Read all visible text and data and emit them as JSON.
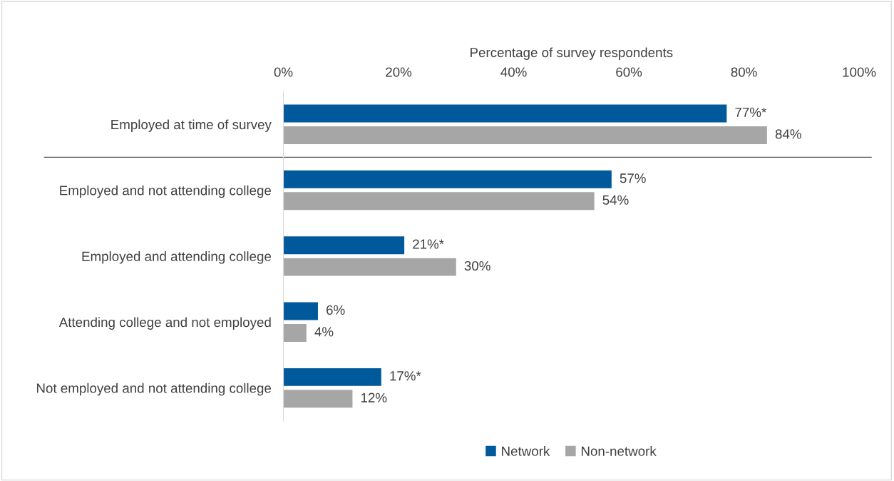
{
  "chart_data": {
    "type": "bar",
    "orientation": "horizontal",
    "xlabel": "Percentage of survey respondents",
    "categories": [
      "Employed at time of survey",
      "Employed and not attending college",
      "Employed and attending college",
      "Attending college and not employed",
      "Not employed and not attending college"
    ],
    "series": [
      {
        "name": "Network",
        "color": "#00599a",
        "values": [
          77,
          57,
          21,
          6,
          17
        ],
        "value_labels": [
          "77%*",
          "57%",
          "21%*",
          "6%",
          "17%*"
        ]
      },
      {
        "name": "Non-network",
        "color": "#a6a6a6",
        "values": [
          84,
          54,
          30,
          4,
          12
        ],
        "value_labels": [
          "84%",
          "54%",
          "30%",
          "4%",
          "12%"
        ]
      }
    ],
    "xlim": [
      0,
      100
    ],
    "xticks": [
      {
        "value": 0,
        "label": "0%"
      },
      {
        "value": 20,
        "label": "20%"
      },
      {
        "value": 40,
        "label": "40%"
      },
      {
        "value": 60,
        "label": "60%"
      },
      {
        "value": 80,
        "label": "80%"
      },
      {
        "value": 100,
        "label": "100%"
      }
    ],
    "grid": false,
    "legend": "bottom"
  }
}
